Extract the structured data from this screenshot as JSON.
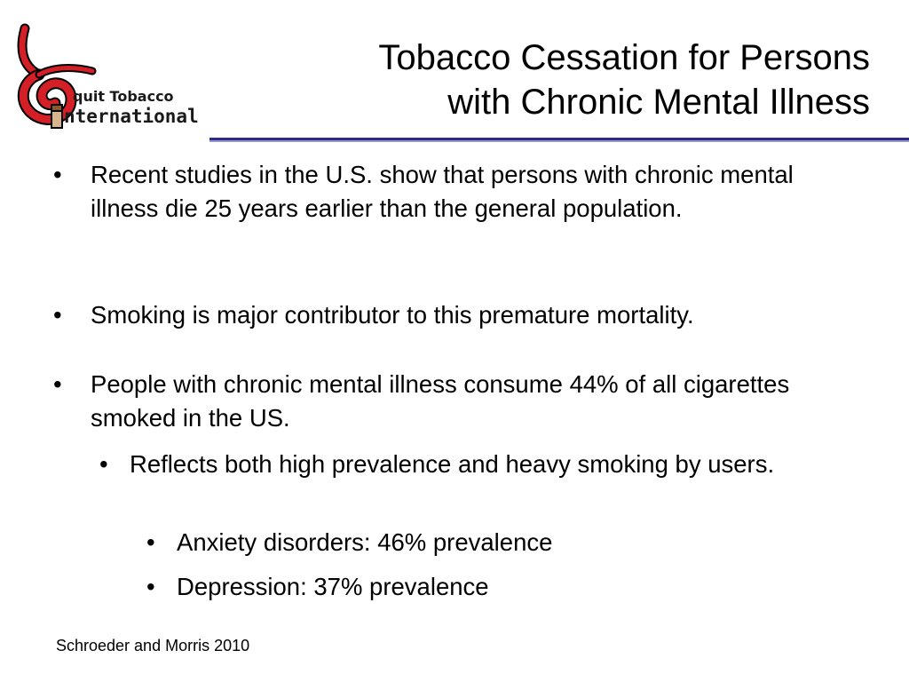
{
  "logo": {
    "line1": "quit Tobacco",
    "line2": "nternational",
    "colors": {
      "swirl": "#d41f26",
      "text": "#1a1a1a",
      "outline": "#000000"
    }
  },
  "title": {
    "line1": "Tobacco Cessation for Persons",
    "line2": "with Chronic Mental Illness"
  },
  "bullets": [
    {
      "level": 1,
      "marker": "•",
      "text": "Recent studies in the U.S. show that persons with chronic mental illness die 25 years earlier than the general population."
    },
    {
      "level": 1,
      "marker": "•",
      "text": "Smoking is major contributor to this premature mortality."
    },
    {
      "level": 1,
      "marker": "•",
      "text": "People with chronic mental illness consume 44% of all cigarettes smoked in the US."
    },
    {
      "level": 2,
      "marker": "•",
      "text": "Reflects both high prevalence and heavy smoking by users."
    },
    {
      "level": 3,
      "marker": "•",
      "text": "Anxiety disorders: 46% prevalence"
    },
    {
      "level": 3,
      "marker": "•",
      "text": "Depression: 37% prevalence"
    }
  ],
  "citation": "Schroeder and Morris 2010",
  "colors": {
    "rule_dark": "#2e2b8c",
    "rule_light": "#9a98c9"
  }
}
